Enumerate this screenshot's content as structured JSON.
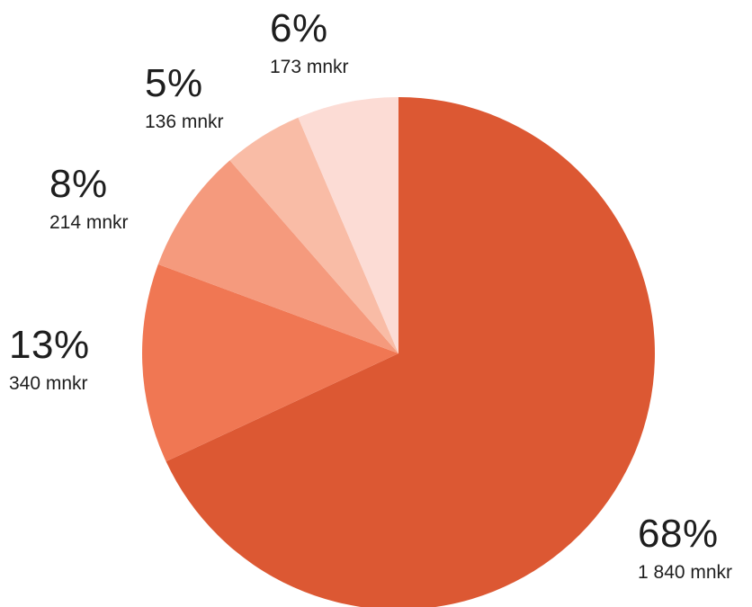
{
  "chart_data": {
    "type": "pie",
    "start_angle_deg": 0,
    "direction": "clockwise",
    "slices": [
      {
        "percent_label": "68%",
        "amount_label": "1 840 mnkr",
        "value": 1840,
        "color": "#DC5833"
      },
      {
        "percent_label": "13%",
        "amount_label": "340 mnkr",
        "value": 340,
        "color": "#F07753"
      },
      {
        "percent_label": "8%",
        "amount_label": "214 mnkr",
        "value": 214,
        "color": "#F59A7D"
      },
      {
        "percent_label": "5%",
        "amount_label": "136 mnkr",
        "value": 136,
        "color": "#F9BCA6"
      },
      {
        "percent_label": "6%",
        "amount_label": "173 mnkr",
        "value": 173,
        "color": "#FCDCD5"
      }
    ]
  }
}
